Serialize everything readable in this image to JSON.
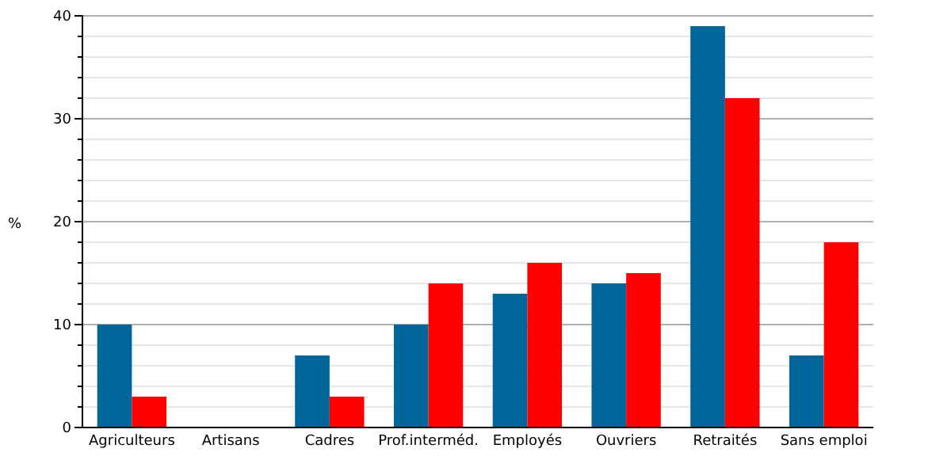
{
  "chart_data": {
    "type": "bar",
    "ylabel": "%",
    "categories": [
      "Agriculteurs",
      "Artisans",
      "Cadres",
      "Prof.interméd.",
      "Employés",
      "Ouvriers",
      "Retraités",
      "Sans emploi"
    ],
    "series": [
      {
        "color": "#006699",
        "values": [
          10,
          0,
          7,
          10,
          13,
          14,
          39,
          7
        ]
      },
      {
        "color": "#ff0000",
        "values": [
          3,
          0,
          3,
          14,
          16,
          15,
          32,
          18
        ]
      }
    ],
    "ylim": [
      0,
      40
    ],
    "yticks": [
      0,
      {
        "value": 2,
        "label": null
      },
      {
        "value": 4,
        "label": null
      },
      {
        "value": 6,
        "label": null
      },
      {
        "value": 8,
        "label": null
      },
      10,
      {
        "value": 12,
        "label": null
      },
      {
        "value": 14,
        "label": null
      },
      {
        "value": 16,
        "label": null
      },
      {
        "value": 18,
        "label": null
      },
      20,
      {
        "value": 22,
        "label": null
      },
      {
        "value": 24,
        "label": null
      },
      {
        "value": 26,
        "label": null
      },
      {
        "value": 28,
        "label": null
      },
      30,
      {
        "value": 32,
        "label": null
      },
      {
        "value": 34,
        "label": null
      },
      {
        "value": 36,
        "label": null
      },
      {
        "value": 38,
        "label": null
      },
      40
    ],
    "grid": true
  }
}
